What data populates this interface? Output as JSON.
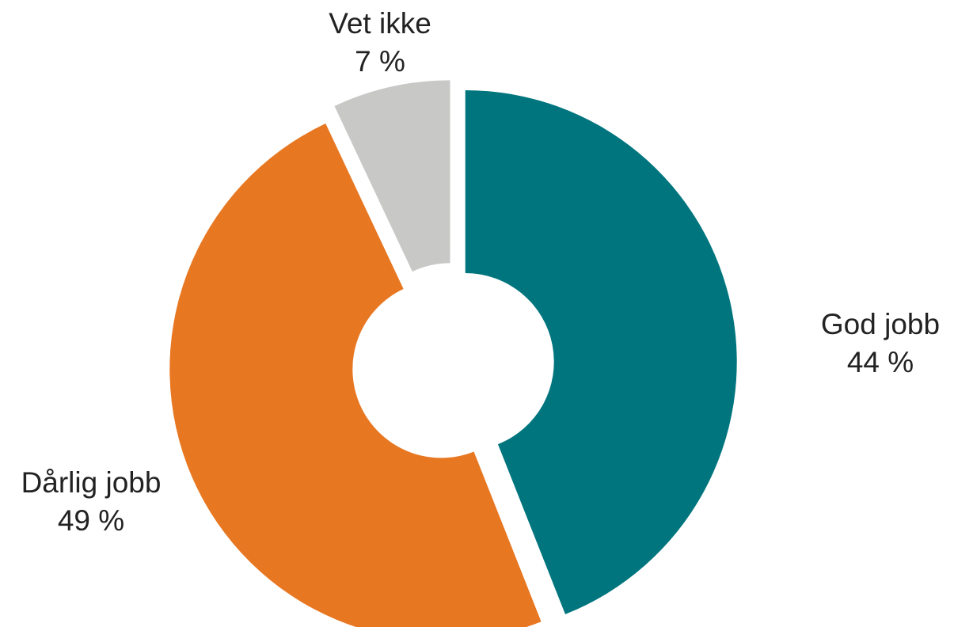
{
  "chart_data": {
    "type": "pie",
    "donut": true,
    "exploded": true,
    "title": "",
    "slices": [
      {
        "label": "God jobb",
        "value": 44,
        "value_label": "44 %",
        "color": "#00757E"
      },
      {
        "label": "Dårlig jobb",
        "value": 49,
        "value_label": "49 %",
        "color": "#E87722"
      },
      {
        "label": "Vet ikke",
        "value": 7,
        "value_label": "7 %",
        "color": "#C8C8C7"
      }
    ]
  }
}
